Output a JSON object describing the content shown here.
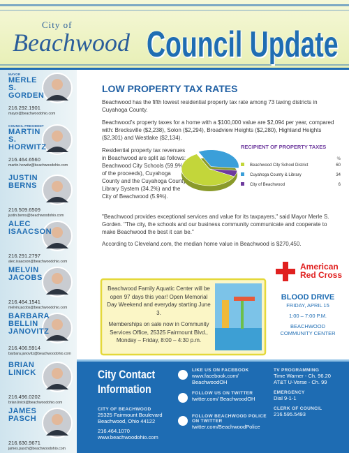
{
  "header": {
    "city_of": "City of",
    "city": "Beachwood",
    "title": "Council Update"
  },
  "council": [
    {
      "role": "MAYOR",
      "name": "MERLE S. GORDEN",
      "phone": "216.292.1901",
      "email": "mayor@beachwoodohio.com"
    },
    {
      "role": "COUNCIL PRESIDENT",
      "name": "MARTIN S. HORWITZ",
      "phone": "216.464.6560",
      "email": "martin.horwitz@beachwoodohio.com"
    },
    {
      "name": "JUSTIN BERNS",
      "phone": "216.509.6509",
      "email": "justin.berns@beachwoodohio.com"
    },
    {
      "name": "ALEC ISAACSON",
      "phone": "216.291.2797",
      "email": "alec.isaacson@beachwoodohio.com"
    },
    {
      "name": "MELVIN JACOBS",
      "phone": "216.464.1541",
      "email": "melvin.jacobs@beachwoodohio.com"
    },
    {
      "name": "BARBARA BELLIN JANOVITZ",
      "phone": "216.406.5914",
      "email": "barbara.janovitz@beachwoodohio.com"
    },
    {
      "name": "BRIAN LINICK",
      "phone": "216.496.0202",
      "email": "brian.linick@beachwoodohio.com"
    },
    {
      "name": "JAMES PASCH",
      "phone": "216.630.9671",
      "email": "james.pasch@beachwoodohio.com"
    }
  ],
  "article": {
    "title": "LOW PROPERTY TAX RATES",
    "paragraphs": [
      "Beachwood has the fifth lowest residential property tax rate among 73 taxing districts in Cuyahoga County.",
      "Beachwood's property taxes for a home with a $100,000 value are $2,094 per year, compared with: Brecksville ($2,238), Solon ($2,294), Broadview Heights ($2,280), Highland Heights ($2,301) and Westlake ($2,134).",
      "Residential property tax revenues in Beachwood are split as follows: Beachwood City Schools (59.9% of the proceeds), Cuyahoga County and the Cuyahoga County Library System (34.2%) and the City of Beachwood (5.9%)."
    ],
    "closing": [
      "\"Beachwood provides exceptional services and value for its taxpayers,\" said Mayor Merle S. Gorden. \"The city, the schools and our business community communicate and cooperate to make Beachwood the best it can be.\"",
      "According to Cleveland.com, the median home value in Beachwood is $270,450."
    ]
  },
  "chart_data": {
    "type": "pie",
    "title": "RECIPIENT OF PROPERTY TAXES",
    "value_header": "%",
    "categories": [
      "Beachwood City School District",
      "Cuyahoga County & Library",
      "City of Beachwood"
    ],
    "values": [
      60,
      34,
      6
    ],
    "colors": [
      "#c3d63a",
      "#3b9fd9",
      "#6e3a9e"
    ]
  },
  "aquatic": {
    "paragraphs": [
      "Beachwood Family Aquatic Center will be open 97 days this year! Open Memorial Day Weekend and everyday starting June 3.",
      "Memberships on sale now in Community Services Office, 25325 Fairmount Blvd., Monday – Friday, 8:00 – 4:30 p.m."
    ]
  },
  "blood_drive": {
    "org": [
      "American",
      "Red Cross"
    ],
    "title": "BLOOD DRIVE",
    "date": "FRIDAY, APRIL 15",
    "time": "1:00 – 7:00 P.M.",
    "location": "BEACHWOOD COMMUNITY CENTER"
  },
  "contact": {
    "title": "City Contact Information",
    "label": "CITY OF BEACHWOOD",
    "address": [
      "25325 Fairmount Boulevard",
      "Beachwood, Ohio 44122"
    ],
    "phone": "216.464.1070",
    "website": "www.beachwoodohio.com"
  },
  "social": [
    {
      "label": "LIKE US ON FACEBOOK",
      "link": "www.facebook.com/ BeachwoodOH"
    },
    {
      "label": "FOLLOW US ON TWITTER",
      "link": "twitter.com/ BeachwoodOH"
    },
    {
      "label": "FOLLOW BEACHWOOD POLICE ON TWITTER",
      "link": "twitter.com/BeachwoodPolice"
    }
  ],
  "info": [
    {
      "label": "TV PROGRAMMING",
      "lines": [
        "Time Warner - Ch. 96.20",
        "AT&T U-Verse - Ch. 99"
      ]
    },
    {
      "label": "EMERGENCY",
      "lines": [
        "Dial 9-1-1"
      ]
    },
    {
      "label": "CLERK OF COUNCIL",
      "lines": [
        "216.595.5493"
      ]
    }
  ]
}
